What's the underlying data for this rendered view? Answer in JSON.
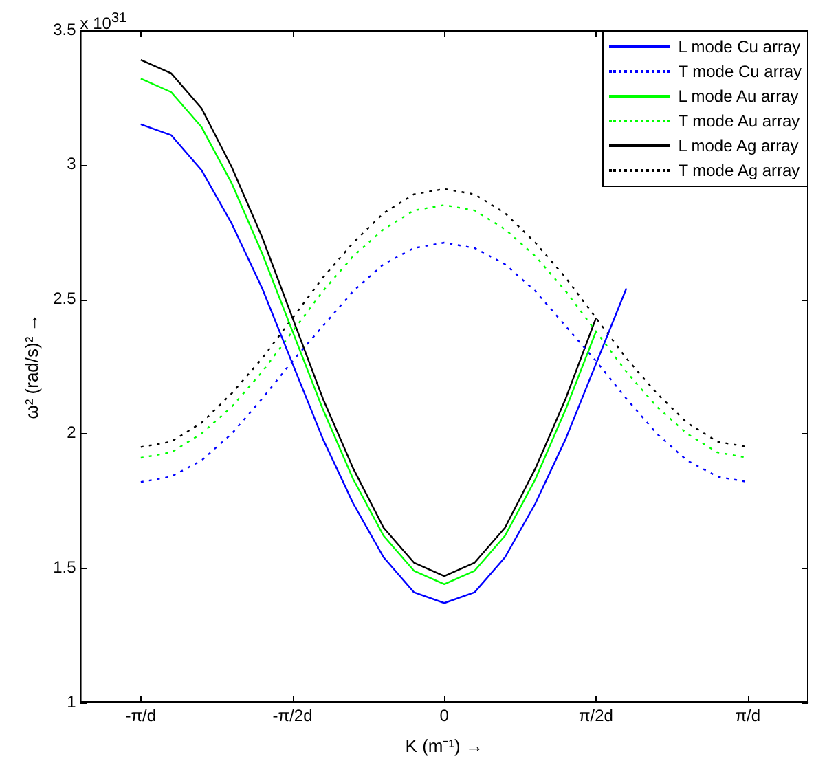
{
  "chart_data": {
    "type": "line",
    "xlabel": "K (m⁻¹) →",
    "ylabel": "ω² (rad/s)² →",
    "annotations": [
      "x 10$^{31}$"
    ],
    "categories": [
      null,
      null,
      "-π/d",
      null,
      null,
      null,
      null,
      "-π/2d",
      null,
      null,
      null,
      null,
      "0",
      null,
      null,
      null,
      null,
      "π/2d",
      null,
      null,
      null,
      null,
      "π/d",
      null,
      null
    ],
    "ylim": [
      1,
      3.5
    ],
    "yticks": [
      1,
      1.5,
      2,
      2.5,
      3,
      3.5
    ],
    "legend": "top right",
    "marker": "none",
    "series": [
      {
        "name": "L mode Cu array",
        "color": "#0000ff",
        "line_style": "solid",
        "values": [
          null,
          null,
          3.15,
          3.11,
          2.98,
          2.78,
          2.54,
          2.26,
          1.98,
          1.74,
          1.54,
          1.41,
          1.37,
          1.41,
          1.54,
          1.74,
          1.98,
          2.26,
          2.54,
          null,
          null,
          null,
          null,
          null,
          null
        ]
      },
      {
        "name": "T mode Cu array",
        "color": "#0000ff",
        "line_style": "dotted",
        "values": [
          null,
          null,
          1.82,
          1.84,
          1.9,
          2.0,
          2.13,
          2.27,
          2.4,
          2.53,
          2.63,
          2.69,
          2.71,
          2.69,
          2.63,
          2.53,
          2.4,
          2.27,
          2.13,
          2.0,
          1.9,
          1.84,
          1.82,
          null,
          null
        ]
      },
      {
        "name": "L mode Au array",
        "color": "#00ff00",
        "line_style": "solid",
        "values": [
          null,
          null,
          3.32,
          3.27,
          3.14,
          2.93,
          2.67,
          2.38,
          2.09,
          1.83,
          1.62,
          1.49,
          1.44,
          1.49,
          1.62,
          1.83,
          2.09,
          2.38,
          null,
          null,
          null,
          null,
          null,
          null,
          null
        ]
      },
      {
        "name": "T mode Au array",
        "color": "#00ff00",
        "line_style": "dotted",
        "values": [
          null,
          null,
          1.91,
          1.93,
          2.0,
          2.1,
          2.23,
          2.38,
          2.53,
          2.66,
          2.76,
          2.83,
          2.85,
          2.83,
          2.76,
          2.66,
          2.53,
          2.38,
          2.23,
          2.1,
          2.0,
          1.93,
          1.91,
          null,
          null
        ]
      },
      {
        "name": "L mode Ag array",
        "color": "#000000",
        "line_style": "solid",
        "values": [
          null,
          null,
          3.39,
          3.34,
          3.21,
          2.99,
          2.73,
          2.43,
          2.13,
          1.87,
          1.65,
          1.52,
          1.47,
          1.52,
          1.65,
          1.87,
          2.13,
          2.43,
          null,
          null,
          null,
          null,
          null,
          null,
          null
        ]
      },
      {
        "name": "T mode Ag array",
        "color": "#000000",
        "line_style": "dotted",
        "values": [
          null,
          null,
          1.95,
          1.97,
          2.04,
          2.15,
          2.28,
          2.43,
          2.58,
          2.71,
          2.82,
          2.89,
          2.91,
          2.89,
          2.82,
          2.71,
          2.58,
          2.43,
          2.28,
          2.15,
          2.04,
          1.97,
          1.95,
          null,
          null
        ]
      }
    ]
  }
}
